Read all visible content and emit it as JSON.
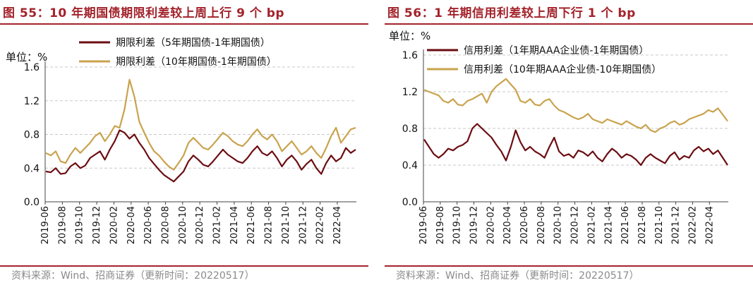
{
  "colors": {
    "accent": "#a3232b",
    "series_dark": "#6b0d12",
    "series_gold": "#c9a34d",
    "grid": "#c8c8c8"
  },
  "chart_data": [
    {
      "type": "line",
      "title": "图 55：10 年期国债期限利差较上周上行 9 个 bp",
      "ylabel": "单位：%",
      "ylim": [
        0.0,
        1.6
      ],
      "yticks": [
        "0.0",
        "0.4",
        "0.8",
        "1.2",
        "1.6"
      ],
      "xticks": [
        "2019-06",
        "2019-08",
        "2019-10",
        "2019-12",
        "2020-02",
        "2020-04",
        "2020-06",
        "2020-08",
        "2020-10",
        "2020-12",
        "2021-02",
        "2021-04",
        "2021-06",
        "2021-08",
        "2021-10",
        "2021-12",
        "2022-02",
        "2022-04"
      ],
      "source": "资料来源：Wind、招商证券（更新时间：20220517）",
      "series": [
        {
          "name": "期限利差（5年期国债-1年期国债）",
          "values": [
            0.36,
            0.35,
            0.4,
            0.33,
            0.34,
            0.42,
            0.46,
            0.4,
            0.43,
            0.52,
            0.56,
            0.6,
            0.5,
            0.62,
            0.72,
            0.85,
            0.82,
            0.75,
            0.8,
            0.7,
            0.62,
            0.52,
            0.45,
            0.38,
            0.32,
            0.28,
            0.24,
            0.3,
            0.36,
            0.48,
            0.55,
            0.5,
            0.44,
            0.42,
            0.48,
            0.55,
            0.62,
            0.56,
            0.52,
            0.48,
            0.46,
            0.52,
            0.6,
            0.66,
            0.58,
            0.55,
            0.6,
            0.52,
            0.42,
            0.5,
            0.55,
            0.48,
            0.38,
            0.45,
            0.5,
            0.4,
            0.33,
            0.46,
            0.55,
            0.48,
            0.52,
            0.64,
            0.58,
            0.62
          ]
        },
        {
          "name": "期限利差（10年期国债-1年期国债）",
          "values": [
            0.58,
            0.55,
            0.6,
            0.48,
            0.46,
            0.56,
            0.64,
            0.58,
            0.64,
            0.7,
            0.78,
            0.82,
            0.72,
            0.8,
            0.9,
            0.88,
            1.1,
            1.45,
            1.25,
            0.95,
            0.82,
            0.7,
            0.6,
            0.55,
            0.48,
            0.42,
            0.38,
            0.46,
            0.55,
            0.7,
            0.76,
            0.7,
            0.64,
            0.62,
            0.68,
            0.75,
            0.82,
            0.78,
            0.72,
            0.68,
            0.66,
            0.72,
            0.8,
            0.86,
            0.78,
            0.74,
            0.8,
            0.72,
            0.6,
            0.66,
            0.72,
            0.64,
            0.56,
            0.6,
            0.66,
            0.58,
            0.52,
            0.64,
            0.78,
            0.88,
            0.7,
            0.78,
            0.86,
            0.88
          ]
        }
      ],
      "legend": "top-left"
    },
    {
      "type": "line",
      "title": "图 56：1 年期信用利差较上周下行 1 个 bp",
      "ylabel": "单位：%",
      "ylim": [
        0.0,
        1.6
      ],
      "yticks": [
        "0.0",
        "0.4",
        "0.8",
        "1.2",
        "1.6"
      ],
      "xticks": [
        "2019-06",
        "2019-08",
        "2019-10",
        "2019-12",
        "2020-02",
        "2020-04",
        "2020-06",
        "2020-08",
        "2020-10",
        "2020-12",
        "2021-02",
        "2021-04",
        "2021-06",
        "2021-08",
        "2021-10",
        "2021-12",
        "2022-02",
        "2022-04"
      ],
      "source": "资料来源：Wind、招商证券（更新时间：20220517）",
      "series": [
        {
          "name": "信用利差（1年期AAA企业债-1年期国债）",
          "values": [
            0.68,
            0.6,
            0.52,
            0.48,
            0.52,
            0.58,
            0.56,
            0.6,
            0.62,
            0.66,
            0.8,
            0.85,
            0.8,
            0.75,
            0.7,
            0.62,
            0.55,
            0.45,
            0.6,
            0.78,
            0.65,
            0.56,
            0.6,
            0.55,
            0.52,
            0.48,
            0.6,
            0.7,
            0.55,
            0.5,
            0.52,
            0.48,
            0.56,
            0.54,
            0.5,
            0.55,
            0.48,
            0.44,
            0.52,
            0.58,
            0.54,
            0.48,
            0.52,
            0.5,
            0.46,
            0.4,
            0.48,
            0.52,
            0.48,
            0.45,
            0.42,
            0.5,
            0.54,
            0.46,
            0.5,
            0.48,
            0.56,
            0.6,
            0.55,
            0.58,
            0.52,
            0.56,
            0.48,
            0.4
          ]
        },
        {
          "name": "信用利差（10年期AAA企业债-10年期国债）",
          "values": [
            1.22,
            1.2,
            1.18,
            1.16,
            1.1,
            1.08,
            1.12,
            1.06,
            1.05,
            1.1,
            1.12,
            1.15,
            1.18,
            1.08,
            1.2,
            1.26,
            1.3,
            1.34,
            1.28,
            1.22,
            1.1,
            1.08,
            1.12,
            1.06,
            1.05,
            1.1,
            1.12,
            1.05,
            1.0,
            0.98,
            0.95,
            0.92,
            0.9,
            0.92,
            0.96,
            0.9,
            0.88,
            0.86,
            0.9,
            0.88,
            0.86,
            0.84,
            0.88,
            0.85,
            0.82,
            0.8,
            0.84,
            0.78,
            0.76,
            0.8,
            0.82,
            0.86,
            0.88,
            0.84,
            0.86,
            0.9,
            0.92,
            0.94,
            0.96,
            1.0,
            0.98,
            1.02,
            0.95,
            0.88
          ]
        }
      ],
      "legend": "top-left"
    }
  ]
}
